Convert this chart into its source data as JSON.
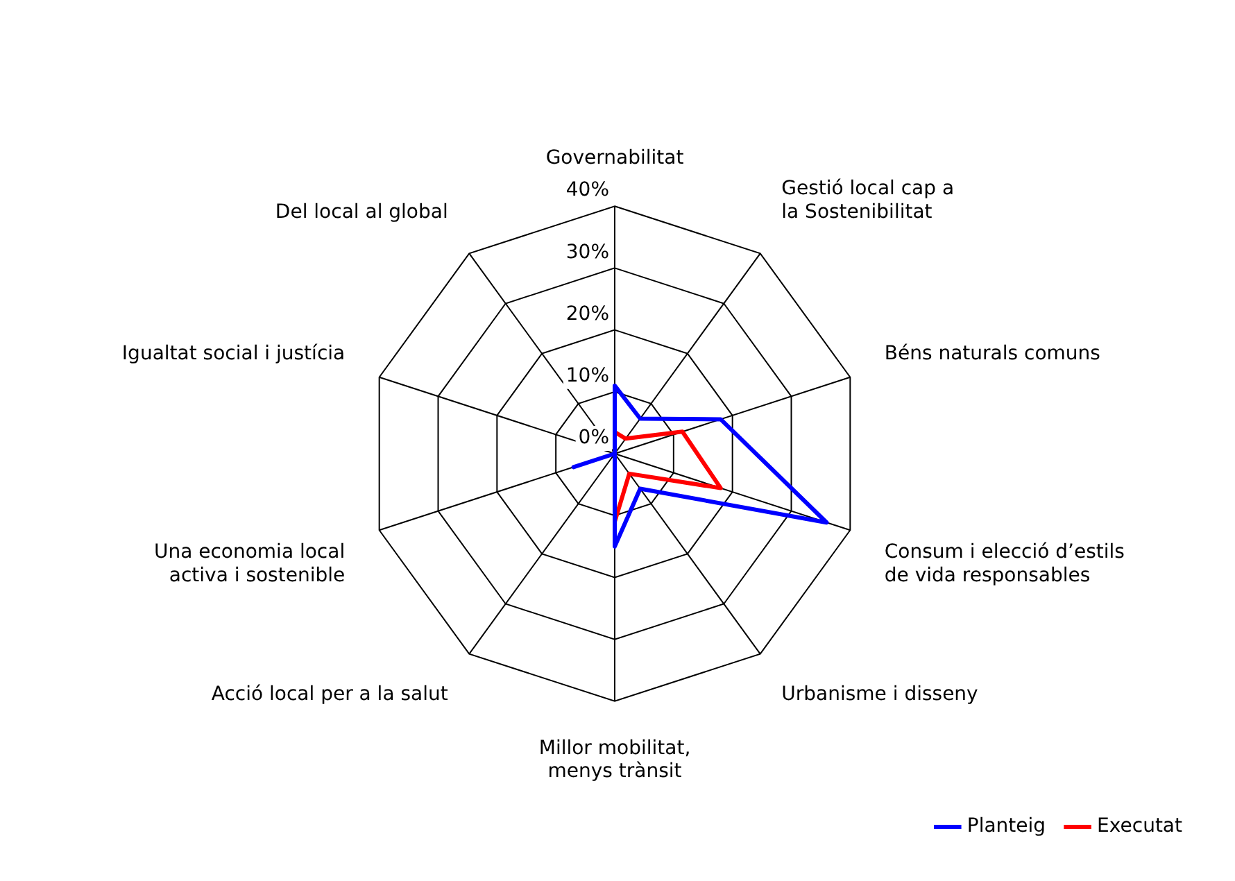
{
  "chart_data": {
    "type": "radar",
    "categories": [
      "Governabilitat",
      "Gestió local cap a la Sostenibilitat",
      "Béns naturals comuns",
      "Consum i elecció d’estils de vida responsables",
      "Urbanisme i disseny",
      "Millor mobilitat, menys trànsit",
      "Acció local per a la salut",
      "Una economia local activa i sostenible",
      "Igualtat social i justícia",
      "Del local al global"
    ],
    "series": [
      {
        "name": "Planteig",
        "color": "#0000ff",
        "values": [
          11,
          7,
          18,
          36,
          7,
          15,
          0,
          7,
          0,
          0
        ]
      },
      {
        "name": "Executat",
        "color": "#ff0000",
        "values": [
          3.5,
          3,
          11.5,
          18,
          4,
          11,
          0,
          0,
          0,
          0
        ]
      }
    ],
    "ylim": [
      0,
      40
    ],
    "yticks": [
      {
        "value": 0,
        "label": "0%"
      },
      {
        "value": 10,
        "label": "10%"
      },
      {
        "value": 20,
        "label": "20%"
      },
      {
        "value": 30,
        "label": "30%"
      },
      {
        "value": 40,
        "label": "40%"
      }
    ],
    "grid": true,
    "marker": "none",
    "legend": "bottom right"
  }
}
